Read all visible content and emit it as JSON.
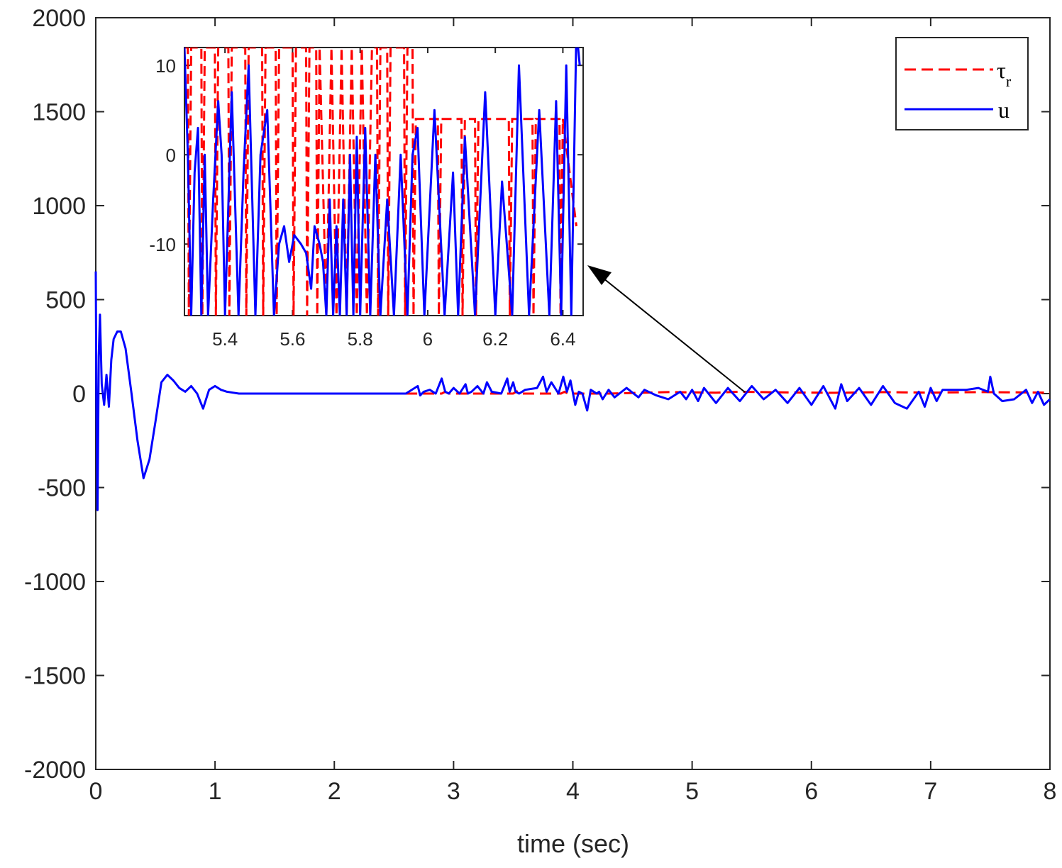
{
  "chart_data": {
    "type": "line",
    "title": "",
    "xlabel": "time (sec)",
    "ylabel": "",
    "xlim": [
      0,
      8
    ],
    "ylim": [
      -2000,
      2000
    ],
    "xticks": [
      0,
      1,
      2,
      3,
      4,
      5,
      6,
      7,
      8
    ],
    "yticks": [
      -2000,
      -1500,
      -1000,
      -500,
      0,
      500,
      1000,
      1500,
      2000
    ],
    "legend": {
      "location": "top-right",
      "entries": [
        {
          "label": "τ",
          "subscript": "r",
          "color": "#ff0000",
          "style": "dashed"
        },
        {
          "label": "u",
          "color": "#0000ff",
          "style": "solid"
        }
      ]
    },
    "series": [
      {
        "name": "tau_r",
        "color": "#ff0000",
        "style": "dashed",
        "x": [
          2.6,
          2.9,
          2.93,
          2.96,
          3.2,
          3.5,
          3.53,
          3.56,
          3.9,
          3.93,
          3.96,
          4.3,
          4.8,
          5.2,
          5.4,
          5.8,
          6.2,
          6.6,
          7.0,
          7.4,
          7.8,
          8.0
        ],
        "y": [
          0,
          0,
          10,
          0,
          0,
          0,
          12,
          0,
          0,
          10,
          0,
          0,
          8,
          5,
          10,
          6,
          4,
          8,
          5,
          8,
          6,
          5
        ]
      },
      {
        "name": "u",
        "color": "#0000ff",
        "style": "solid",
        "x": [
          0.0,
          0.005,
          0.015,
          0.025,
          0.035,
          0.05,
          0.07,
          0.09,
          0.11,
          0.13,
          0.15,
          0.18,
          0.21,
          0.25,
          0.3,
          0.35,
          0.4,
          0.45,
          0.5,
          0.55,
          0.6,
          0.65,
          0.7,
          0.75,
          0.8,
          0.85,
          0.9,
          0.95,
          1.0,
          1.05,
          1.1,
          1.15,
          1.2,
          1.25,
          1.3,
          1.4,
          1.5,
          1.7,
          2.0,
          2.3,
          2.6,
          2.7,
          2.72,
          2.75,
          2.8,
          2.85,
          2.9,
          2.93,
          2.96,
          3.0,
          3.05,
          3.1,
          3.12,
          3.15,
          3.2,
          3.25,
          3.28,
          3.32,
          3.4,
          3.45,
          3.47,
          3.5,
          3.52,
          3.55,
          3.6,
          3.7,
          3.75,
          3.78,
          3.82,
          3.88,
          3.92,
          3.95,
          3.98,
          4.02,
          4.05,
          4.08,
          4.12,
          4.15,
          4.2,
          4.22,
          4.25,
          4.3,
          4.35,
          4.45,
          4.55,
          4.6,
          4.7,
          4.8,
          4.9,
          4.95,
          5.0,
          5.05,
          5.1,
          5.2,
          5.3,
          5.4,
          5.5,
          5.6,
          5.7,
          5.8,
          5.9,
          6.0,
          6.1,
          6.2,
          6.25,
          6.3,
          6.4,
          6.5,
          6.6,
          6.7,
          6.8,
          6.9,
          6.95,
          7.0,
          7.05,
          7.1,
          7.2,
          7.3,
          7.4,
          7.48,
          7.5,
          7.53,
          7.6,
          7.7,
          7.8,
          7.85,
          7.9,
          7.95,
          8.0
        ],
        "y": [
          650,
          0,
          -620,
          200,
          420,
          50,
          -60,
          100,
          -70,
          180,
          290,
          330,
          330,
          240,
          0,
          -250,
          -450,
          -350,
          -150,
          60,
          100,
          70,
          30,
          10,
          40,
          0,
          -80,
          20,
          40,
          20,
          10,
          5,
          0,
          0,
          0,
          0,
          0,
          0,
          0,
          0,
          0,
          40,
          -10,
          10,
          20,
          0,
          80,
          10,
          0,
          30,
          0,
          50,
          0,
          10,
          40,
          0,
          60,
          10,
          0,
          80,
          10,
          60,
          10,
          0,
          20,
          30,
          90,
          10,
          60,
          0,
          90,
          10,
          70,
          -60,
          10,
          0,
          -90,
          20,
          0,
          10,
          -30,
          20,
          -20,
          30,
          -20,
          20,
          -10,
          -30,
          10,
          -30,
          20,
          -40,
          30,
          -50,
          30,
          -40,
          40,
          -30,
          20,
          -50,
          30,
          -60,
          40,
          -80,
          50,
          -40,
          30,
          -60,
          40,
          -50,
          -80,
          10,
          -70,
          30,
          -40,
          20,
          20,
          20,
          30,
          10,
          90,
          0,
          -40,
          -30,
          20,
          -50,
          10,
          -60,
          -30
        ]
      }
    ],
    "inset": {
      "xlim": [
        5.28,
        6.46
      ],
      "ylim": [
        -18,
        12
      ],
      "xticks": [
        5.4,
        5.6,
        5.8,
        6,
        6.2,
        6.4
      ],
      "xtick_labels": [
        "5.4",
        "5.6",
        "5.8",
        "6",
        "6.2",
        "6.4"
      ],
      "yticks": [
        10,
        0,
        -10
      ],
      "yticks_labels": [
        "10",
        "0",
        "-10"
      ],
      "tau_r": {
        "x": [
          5.28,
          5.29,
          5.293,
          5.3,
          5.33,
          5.333,
          5.34,
          5.37,
          5.373,
          5.38,
          5.41,
          5.413,
          5.42,
          5.46,
          5.463,
          5.47,
          5.51,
          5.513,
          5.52,
          5.55,
          5.553,
          5.56,
          5.6,
          5.603,
          5.61,
          5.64,
          5.643,
          5.65,
          5.67,
          5.673,
          5.68,
          5.7,
          5.715,
          5.73,
          5.745,
          5.76,
          5.775,
          5.79,
          5.805,
          5.82,
          5.835,
          5.85,
          5.853,
          5.86,
          5.88,
          5.883,
          5.89,
          5.93,
          5.933,
          5.94,
          5.955,
          5.958,
          5.965,
          6.03,
          6.033,
          6.04,
          6.1,
          6.103,
          6.11,
          6.14,
          6.143,
          6.15,
          6.24,
          6.243,
          6.25,
          6.31,
          6.313,
          6.32,
          6.39,
          6.393,
          6.4,
          6.44
        ],
        "y": [
          12,
          12,
          -18,
          12,
          12,
          -18,
          12,
          12,
          -18,
          12,
          12,
          -18,
          12,
          12,
          -18,
          12,
          12,
          -18,
          12,
          12,
          -18,
          12,
          12,
          -18,
          12,
          12,
          -18,
          12,
          12,
          -18,
          12,
          -18,
          12,
          -18,
          12,
          -18,
          12,
          -18,
          12,
          -18,
          12,
          12,
          -18,
          12,
          12,
          -18,
          12,
          12,
          -18,
          12,
          12,
          -18,
          4,
          4,
          -18,
          4,
          4,
          -18,
          4,
          4,
          -18,
          4,
          4,
          -18,
          4,
          4,
          -18,
          4,
          4,
          -18,
          4,
          -8
        ]
      },
      "u": {
        "x": [
          5.28,
          5.29,
          5.3,
          5.31,
          5.32,
          5.33,
          5.34,
          5.35,
          5.365,
          5.38,
          5.39,
          5.4,
          5.42,
          5.44,
          5.455,
          5.47,
          5.49,
          5.505,
          5.525,
          5.545,
          5.56,
          5.575,
          5.59,
          5.605,
          5.625,
          5.64,
          5.655,
          5.665,
          5.68,
          5.69,
          5.7,
          5.71,
          5.72,
          5.73,
          5.74,
          5.75,
          5.76,
          5.77,
          5.78,
          5.79,
          5.8,
          5.815,
          5.83,
          5.845,
          5.86,
          5.88,
          5.9,
          5.92,
          5.94,
          5.955,
          5.97,
          5.99,
          6.02,
          6.05,
          6.075,
          6.09,
          6.11,
          6.14,
          6.17,
          6.2,
          6.22,
          6.25,
          6.27,
          6.3,
          6.33,
          6.36,
          6.38,
          6.395,
          6.41,
          6.425,
          6.44,
          6.45
        ],
        "y": [
          12,
          0,
          -18,
          -2,
          3,
          -18,
          0,
          -18,
          -5,
          6,
          0,
          -18,
          7,
          -18,
          -2,
          10,
          -18,
          0,
          5,
          -18,
          -10,
          -8,
          -12,
          -9,
          -10,
          -11,
          -15,
          -8,
          -10,
          -12,
          -18,
          -5,
          -18,
          -8,
          -18,
          -5,
          -18,
          0,
          -18,
          2,
          -18,
          3,
          -18,
          0,
          -18,
          -5,
          -18,
          0,
          -18,
          0,
          3,
          -18,
          5,
          -18,
          -2,
          -18,
          2,
          -18,
          7,
          -18,
          -3,
          -18,
          10,
          -18,
          5,
          -18,
          6,
          -18,
          10,
          -18,
          14,
          10
        ]
      }
    }
  }
}
